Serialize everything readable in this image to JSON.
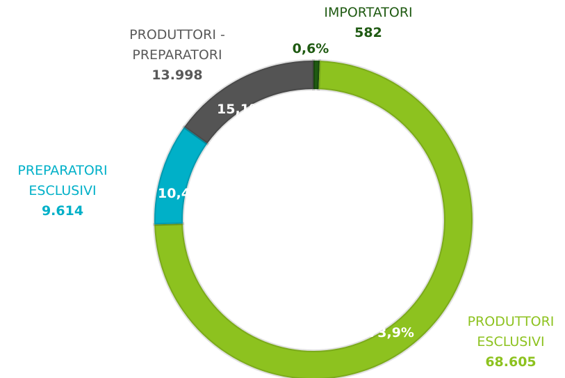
{
  "chart_data": {
    "type": "donut",
    "categories": [
      "IMPORTATORI",
      "PRODUTTORI\nESCLUSIVI",
      "PREPARATORI\nESCLUSIVI",
      "PRODUTTORI -\nPREPARATORI"
    ],
    "values": [
      582,
      68605,
      9614,
      13998
    ],
    "value_labels": [
      "582",
      "68.605",
      "9.614",
      "13.998"
    ],
    "percentages": [
      0.6,
      73.9,
      10.4,
      15.1
    ],
    "percentage_labels": [
      "0,6%",
      "73,9%",
      "10,4%",
      "15,1%"
    ],
    "colors": [
      "#1f5a12",
      "#8dc21f",
      "#00b0c8",
      "#545454"
    ]
  }
}
